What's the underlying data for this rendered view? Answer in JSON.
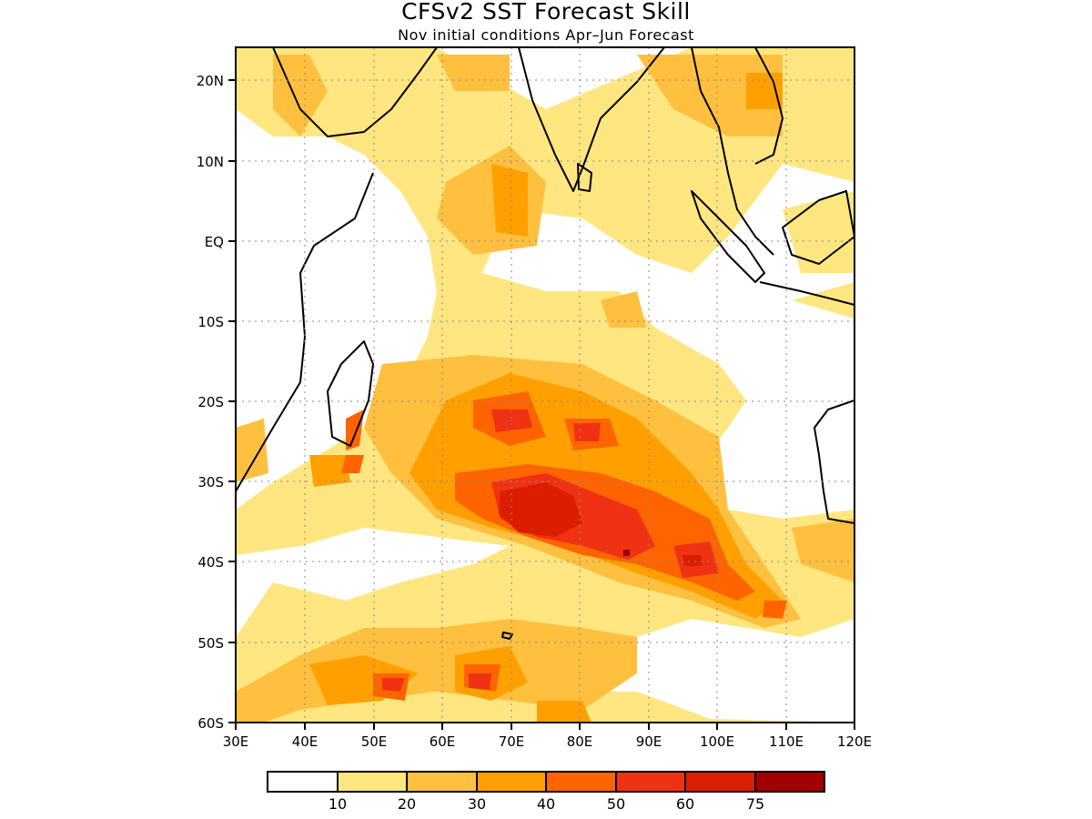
{
  "title": "CFSv2 SST Forecast Skill",
  "subtitle": "Nov initial conditions  Apr–Jun Forecast",
  "map": {
    "region": "Indian Ocean",
    "lon_range": [
      30,
      120
    ],
    "lat_range": [
      -60,
      24
    ],
    "lon_ticks": [
      "30E",
      "40E",
      "50E",
      "60E",
      "70E",
      "80E",
      "90E",
      "100E",
      "110E",
      "120E"
    ],
    "lat_ticks": [
      {
        "lat": 20,
        "label": "20N"
      },
      {
        "lat": 10,
        "label": "10N"
      },
      {
        "lat": 0,
        "label": "EQ"
      },
      {
        "lat": -10,
        "label": "10S"
      },
      {
        "lat": -20,
        "label": "20S"
      },
      {
        "lat": -30,
        "label": "30S"
      },
      {
        "lat": -40,
        "label": "40S"
      },
      {
        "lat": -50,
        "label": "50S"
      },
      {
        "lat": -60,
        "label": "60S"
      }
    ],
    "grid": "dotted"
  },
  "colorbar": {
    "levels": [
      "10",
      "20",
      "30",
      "40",
      "50",
      "60",
      "75"
    ],
    "colors": [
      "#ffffff",
      "#ffe680",
      "#ffc040",
      "#ffa000",
      "#ff6400",
      "#f03214",
      "#dc1e00",
      "#a00000"
    ]
  },
  "skill_maxima": [
    {
      "lon": 73,
      "lat": -33,
      "level": 6
    },
    {
      "lon": 80,
      "lat": -38,
      "level": 5
    },
    {
      "lon": 97,
      "lat": -40,
      "level": 6
    },
    {
      "lon": 72,
      "lat": -22,
      "level": 5
    },
    {
      "lon": 52,
      "lat": -55,
      "level": 5
    },
    {
      "lon": 68,
      "lat": -55,
      "level": 5
    }
  ]
}
